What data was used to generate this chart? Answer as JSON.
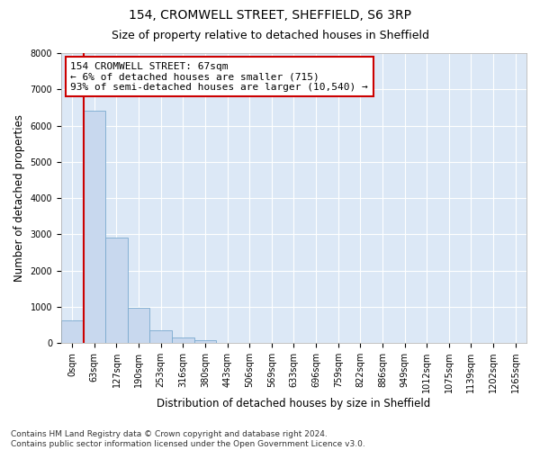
{
  "title_line1": "154, CROMWELL STREET, SHEFFIELD, S6 3RP",
  "title_line2": "Size of property relative to detached houses in Sheffield",
  "xlabel": "Distribution of detached houses by size in Sheffield",
  "ylabel": "Number of detached properties",
  "footnote": "Contains HM Land Registry data © Crown copyright and database right 2024.\nContains public sector information licensed under the Open Government Licence v3.0.",
  "bar_labels": [
    "0sqm",
    "63sqm",
    "127sqm",
    "190sqm",
    "253sqm",
    "316sqm",
    "380sqm",
    "443sqm",
    "506sqm",
    "569sqm",
    "633sqm",
    "696sqm",
    "759sqm",
    "822sqm",
    "886sqm",
    "949sqm",
    "1012sqm",
    "1075sqm",
    "1139sqm",
    "1202sqm",
    "1265sqm"
  ],
  "bar_values": [
    620,
    6400,
    2920,
    970,
    360,
    150,
    80,
    0,
    0,
    0,
    0,
    0,
    0,
    0,
    0,
    0,
    0,
    0,
    0,
    0,
    0
  ],
  "bar_color": "#c8d8ee",
  "bar_edge_color": "#7aaacf",
  "vline_color": "#cc0000",
  "annotation_text": "154 CROMWELL STREET: 67sqm\n← 6% of detached houses are smaller (715)\n93% of semi-detached houses are larger (10,540) →",
  "annotation_box_color": "#ffffff",
  "annotation_box_edge_color": "#cc0000",
  "ylim_max": 8000,
  "yticks": [
    0,
    1000,
    2000,
    3000,
    4000,
    5000,
    6000,
    7000,
    8000
  ],
  "background_color": "#ffffff",
  "plot_bg_color": "#dce8f6",
  "grid_color": "#ffffff",
  "title_fontsize": 10,
  "subtitle_fontsize": 9,
  "axis_label_fontsize": 8.5,
  "tick_fontsize": 7,
  "footnote_fontsize": 6.5,
  "annotation_fontsize": 8
}
